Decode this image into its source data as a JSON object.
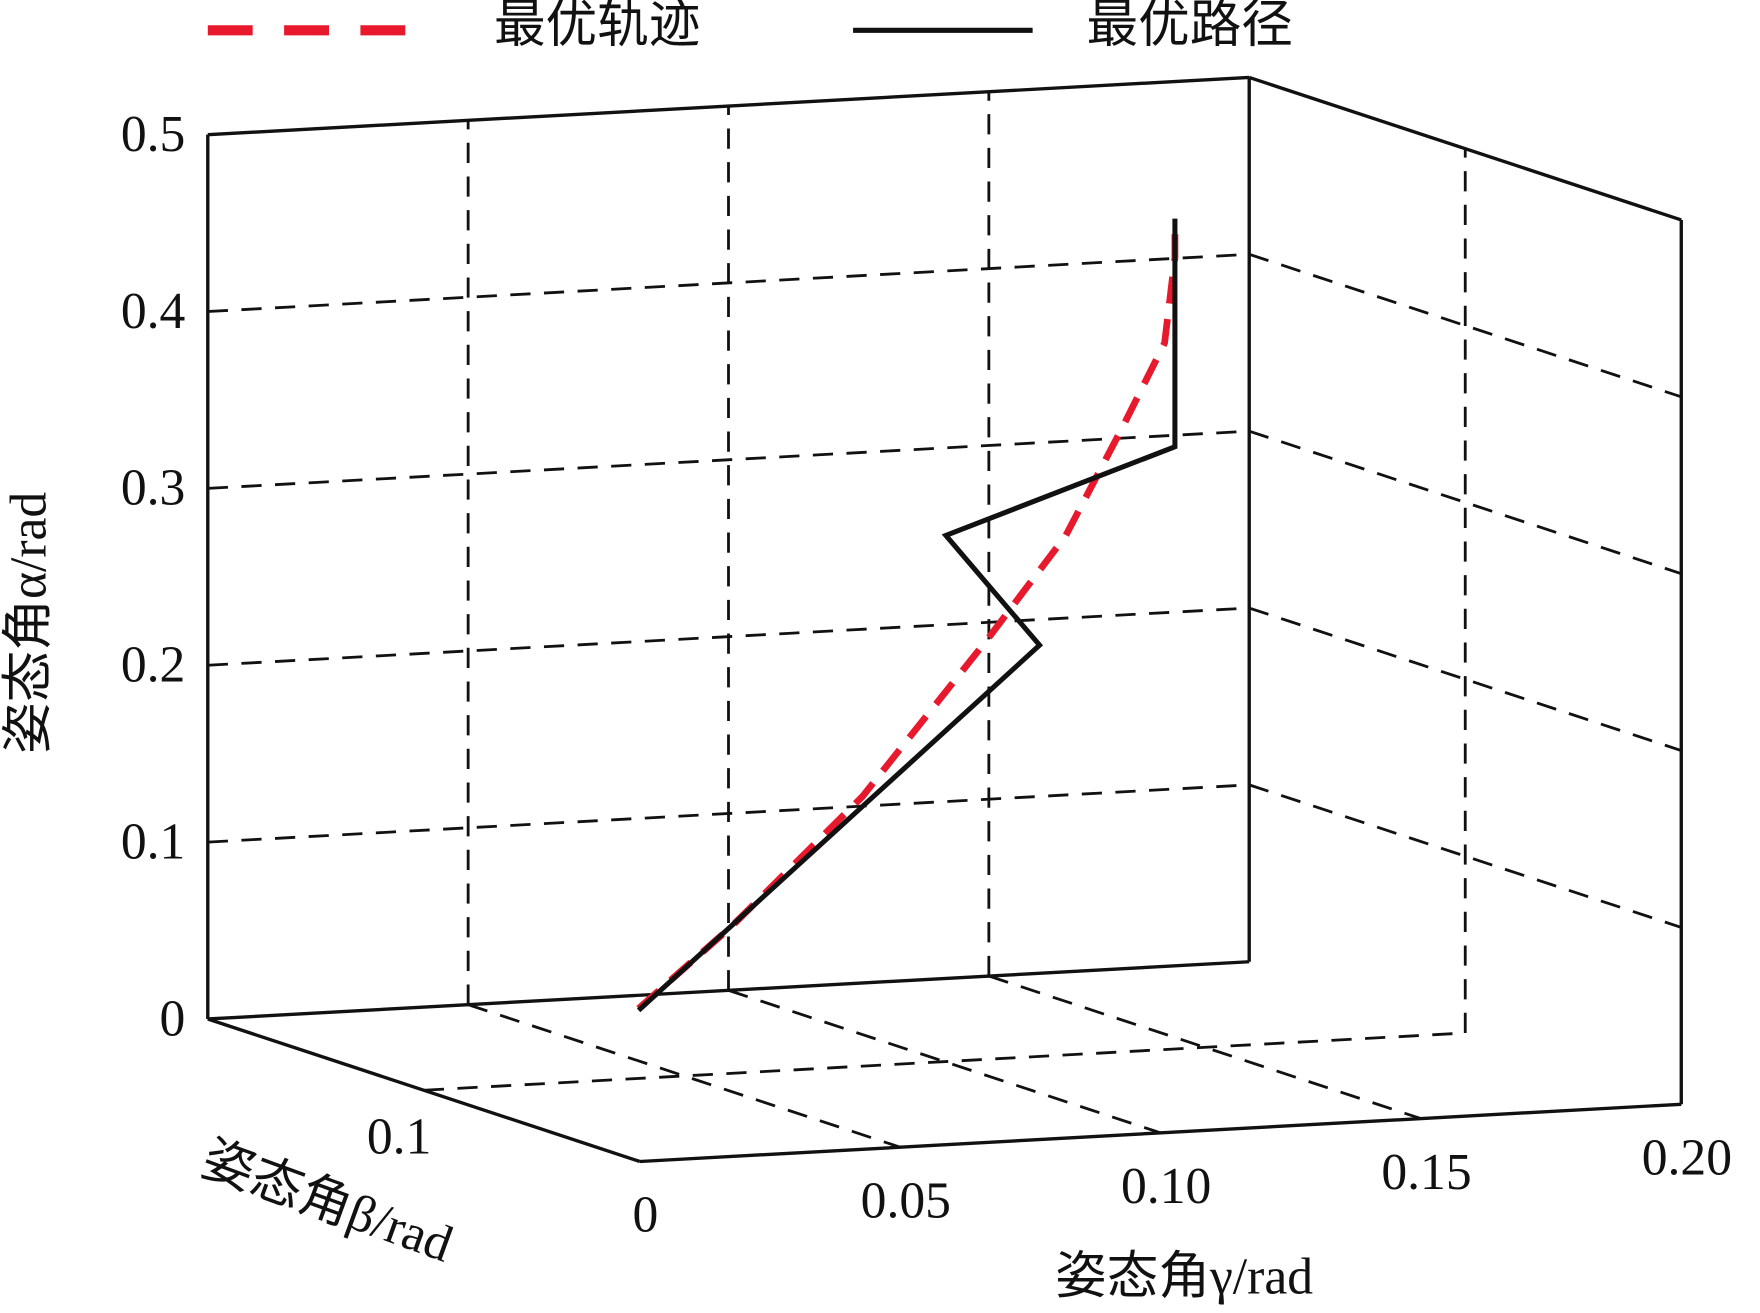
{
  "chart_data": {
    "type": "line3d",
    "xlabel": "姿态角γ/rad",
    "ylabel": "姿态角β/rad",
    "zlabel": "姿态角α/rad",
    "xlim": [
      0,
      0.2
    ],
    "xticks": [
      0,
      0.05,
      {
        "value": 0.1,
        "label": "0.10"
      },
      0.15,
      {
        "value": 0.2,
        "label": "0.20"
      }
    ],
    "ylim": [
      0,
      0.2
    ],
    "yticks": [
      0.1
    ],
    "zlim": [
      0,
      0.5
    ],
    "zticks": [
      0,
      0.1,
      0.2,
      0.3,
      0.4,
      0.5
    ],
    "grid": true,
    "legend": "top",
    "series": [
      {
        "name": "最优轨迹",
        "color": "#e8192c",
        "style": "dashed",
        "x": [
          0.062,
          0.08,
          0.105,
          0.129,
          0.144,
          0.155,
          0.163,
          0.165,
          0.165
        ],
        "y": [
          0.05,
          0.05,
          0.05,
          0.05,
          0.05,
          0.05,
          0.05,
          0.05,
          0.05
        ],
        "z": [
          0.016,
          0.06,
          0.129,
          0.214,
          0.27,
          0.33,
          0.376,
          0.424,
          0.446
        ]
      },
      {
        "name": "最优路径",
        "color": "#111111",
        "style": "solid",
        "x": [
          0.062,
          0.139,
          0.121,
          0.165,
          0.165
        ],
        "y": [
          0.05,
          0.05,
          0.05,
          0.05,
          0.05
        ],
        "z": [
          0.015,
          0.209,
          0.274,
          0.317,
          0.446
        ]
      }
    ]
  }
}
